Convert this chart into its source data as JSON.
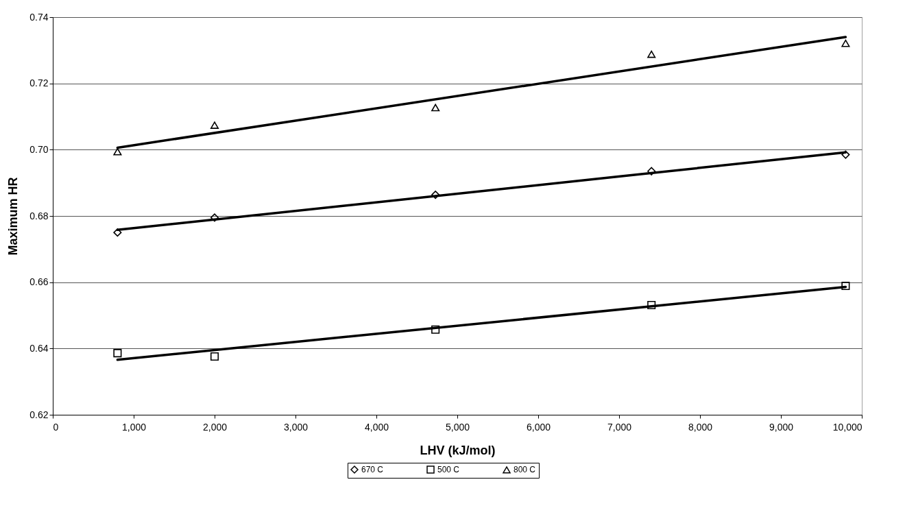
{
  "chart_data": {
    "type": "scatter",
    "xlabel": "LHV (kJ/mol)",
    "ylabel": "Maximum HR",
    "xlim": [
      0,
      10000
    ],
    "xticks": [
      0,
      {
        "value": 1000,
        "label": "1,000"
      },
      {
        "value": 2000,
        "label": "2,000"
      },
      {
        "value": 3000,
        "label": "3,000"
      },
      {
        "value": 4000,
        "label": "4,000"
      },
      {
        "value": 5000,
        "label": "5,000"
      },
      {
        "value": 6000,
        "label": "6,000"
      },
      {
        "value": 7000,
        "label": "7,000"
      },
      {
        "value": 8000,
        "label": "8,000"
      },
      {
        "value": 9000,
        "label": "9,000"
      },
      {
        "value": 10000,
        "label": "10,000"
      }
    ],
    "ylim": [
      0.62,
      0.74
    ],
    "yticks": [
      0.62,
      0.64,
      0.66,
      0.68,
      {
        "value": 0.7,
        "label": "0.70"
      },
      0.72,
      0.74
    ],
    "grid": "y",
    "legend": "bottom",
    "series": [
      {
        "name": "670 C",
        "color": "#000000",
        "marker": "diamond",
        "x": [
          800,
          2000,
          4730,
          7400,
          9800
        ],
        "values": [
          0.675,
          0.6795,
          0.6864,
          0.6935,
          0.6985
        ]
      },
      {
        "name": "500 C",
        "color": "#000000",
        "marker": "square",
        "x": [
          800,
          2000,
          4730,
          7400,
          9800
        ],
        "values": [
          0.6386,
          0.6376,
          0.6457,
          0.6531,
          0.6589
        ]
      },
      {
        "name": "800 C",
        "color": "#000000",
        "marker": "triangle",
        "x": [
          800,
          2000,
          4730,
          7400,
          9800
        ],
        "values": [
          0.6994,
          0.7074,
          0.7127,
          0.7288,
          0.7321
        ]
      },
      {
        "type": "line",
        "color": "#000000",
        "x": [
          800,
          9800
        ],
        "values": [
          0.6758,
          0.6992
        ]
      },
      {
        "type": "line",
        "color": "#000000",
        "x": [
          800,
          9800
        ],
        "values": [
          0.6366,
          0.6586
        ]
      },
      {
        "type": "line",
        "color": "#000000",
        "x": [
          800,
          9800
        ],
        "values": [
          0.7006,
          0.734
        ]
      }
    ]
  }
}
